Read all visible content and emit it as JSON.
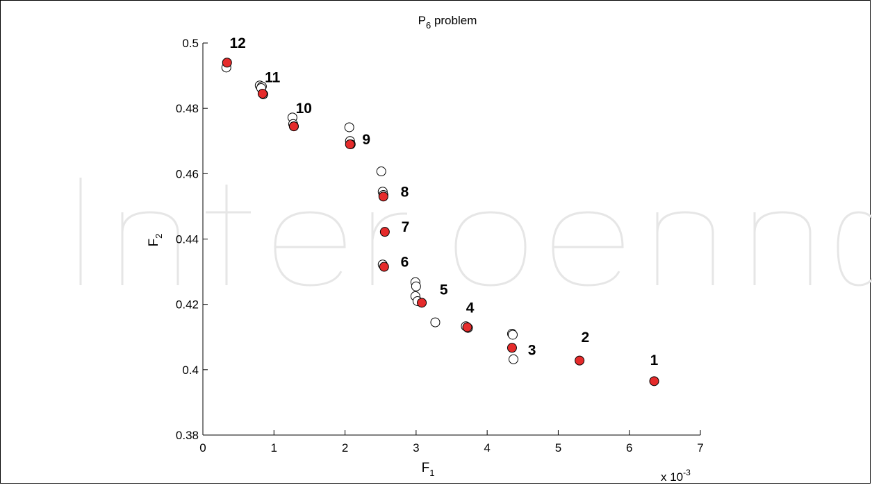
{
  "chart_data": {
    "type": "scatter",
    "title": "P",
    "title_sub": "6",
    "title_rest": " problem",
    "xlabel": "F",
    "xlabel_sub": "1",
    "ylabel": "F",
    "ylabel_sub": "2",
    "x_multiplier_base": "x 10",
    "x_multiplier_exp": "-3",
    "xlim": [
      0,
      7
    ],
    "ylim": [
      0.38,
      0.5
    ],
    "xticks": [
      0,
      1,
      2,
      3,
      4,
      5,
      6,
      7
    ],
    "xtick_labels": [
      "0",
      "1",
      "2",
      "3",
      "4",
      "5",
      "6",
      "7"
    ],
    "yticks": [
      0.38,
      0.4,
      0.42,
      0.44,
      0.46,
      0.48,
      0.5
    ],
    "ytick_labels": [
      "0.38",
      "0.4",
      "0.42",
      "0.44",
      "0.46",
      "0.48",
      "0.5"
    ],
    "grid": false,
    "series": [
      {
        "marker": "open-circle",
        "color": "#000000",
        "x": [
          0.33,
          0.8,
          0.83,
          0.82,
          0.85,
          1.26,
          1.27,
          1.28,
          2.06,
          2.07,
          2.08,
          2.51,
          2.53,
          2.54,
          2.53,
          2.99,
          3.0,
          2.99,
          3.02,
          3.27,
          3.7,
          3.73,
          4.35,
          4.36,
          4.37
        ],
        "y": [
          0.4925,
          0.487,
          0.4867,
          0.4862,
          0.4843,
          0.4772,
          0.4752,
          0.4745,
          0.4742,
          0.47,
          0.469,
          0.4607,
          0.4545,
          0.4535,
          0.4322,
          0.4268,
          0.4255,
          0.4225,
          0.421,
          0.4145,
          0.4133,
          0.4128,
          0.411,
          0.4107,
          0.4032
        ]
      },
      {
        "marker": "filled-circle",
        "color": "#e52b2b",
        "x": [
          6.35,
          5.3,
          4.35,
          3.72,
          3.08,
          2.55,
          2.56,
          2.54,
          2.07,
          1.28,
          0.84,
          0.34
        ],
        "y": [
          0.3965,
          0.4028,
          0.4067,
          0.413,
          0.4205,
          0.4315,
          0.4422,
          0.453,
          0.469,
          0.4745,
          0.4845,
          0.494
        ],
        "labels": [
          "1",
          "2",
          "3",
          "4",
          "5",
          "6",
          "7",
          "8",
          "9",
          "10",
          "11",
          "12"
        ]
      }
    ],
    "point_labels": [
      {
        "text": "1",
        "x": 6.35,
        "y": 0.4015
      },
      {
        "text": "2",
        "x": 5.38,
        "y": 0.4085
      },
      {
        "text": "3",
        "x": 4.63,
        "y": 0.4045
      },
      {
        "text": "4",
        "x": 3.76,
        "y": 0.4175
      },
      {
        "text": "5",
        "x": 3.39,
        "y": 0.423
      },
      {
        "text": "6",
        "x": 2.84,
        "y": 0.4315
      },
      {
        "text": "7",
        "x": 2.85,
        "y": 0.4422
      },
      {
        "text": "8",
        "x": 2.84,
        "y": 0.453
      },
      {
        "text": "9",
        "x": 2.3,
        "y": 0.469
      },
      {
        "text": "10",
        "x": 1.42,
        "y": 0.4785
      },
      {
        "text": "11",
        "x": 0.98,
        "y": 0.488
      },
      {
        "text": "12",
        "x": 0.49,
        "y": 0.4985
      }
    ]
  }
}
